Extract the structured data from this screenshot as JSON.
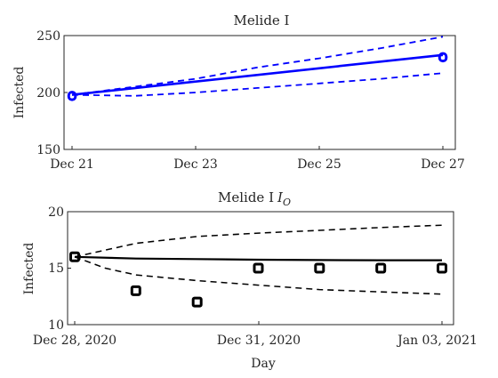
{
  "chart_data": [
    {
      "type": "line",
      "title": "Melide I",
      "ylabel": "Infected",
      "xlabel": "",
      "x_ticks": [
        "Dec 21",
        "Dec 23",
        "Dec 25",
        "Dec 27"
      ],
      "y_ticks": [
        "150",
        "200",
        "250"
      ],
      "ylim": [
        150,
        250
      ],
      "xlim_days": [
        0,
        6
      ],
      "color": "#0000ff",
      "observed": [
        {
          "day": 0,
          "value": 197
        },
        {
          "day": 6,
          "value": 231
        }
      ],
      "series": [
        {
          "role": "fit",
          "style": "solid",
          "points": [
            [
              0,
              198
            ],
            [
              6,
              233
            ]
          ]
        },
        {
          "role": "upper",
          "style": "dashed",
          "points": [
            [
              0,
              198
            ],
            [
              1,
              205
            ],
            [
              2,
              212
            ],
            [
              3,
              222
            ],
            [
              4,
              230
            ],
            [
              5,
              239
            ],
            [
              6,
              249
            ]
          ]
        },
        {
          "role": "lower",
          "style": "dashed",
          "points": [
            [
              0,
              198
            ],
            [
              1,
              197
            ],
            [
              2,
              200
            ],
            [
              3,
              204
            ],
            [
              4,
              208
            ],
            [
              5,
              212
            ],
            [
              6,
              217
            ]
          ]
        }
      ]
    },
    {
      "type": "line",
      "title": "Melide I",
      "title_subscript": "O",
      "ylabel": "Infected",
      "xlabel": "Day",
      "x_ticks": [
        "Dec 28, 2020",
        "Dec 31, 2020",
        "Jan 03, 2021"
      ],
      "y_ticks": [
        "10",
        "15",
        "20"
      ],
      "ylim": [
        10,
        20
      ],
      "xlim_days": [
        0,
        6
      ],
      "color": "#000000",
      "observed": [
        {
          "day": 0,
          "value": 16
        },
        {
          "day": 1,
          "value": 13
        },
        {
          "day": 2,
          "value": 12
        },
        {
          "day": 3,
          "value": 15
        },
        {
          "day": 4,
          "value": 15
        },
        {
          "day": 5,
          "value": 15
        },
        {
          "day": 6,
          "value": 15
        }
      ],
      "series": [
        {
          "role": "fit",
          "style": "solid",
          "points": [
            [
              0,
              16
            ],
            [
              1,
              15.85
            ],
            [
              2,
              15.8
            ],
            [
              3,
              15.75
            ],
            [
              4,
              15.72
            ],
            [
              5,
              15.7
            ],
            [
              6,
              15.7
            ]
          ]
        },
        {
          "role": "upper",
          "style": "dashed",
          "points": [
            [
              0,
              16
            ],
            [
              0.5,
              16.6
            ],
            [
              1,
              17.2
            ],
            [
              2,
              17.8
            ],
            [
              3,
              18.1
            ],
            [
              4,
              18.35
            ],
            [
              5,
              18.6
            ],
            [
              6,
              18.8
            ]
          ]
        },
        {
          "role": "lower",
          "style": "dashed",
          "points": [
            [
              0,
              16
            ],
            [
              0.5,
              15
            ],
            [
              1,
              14.4
            ],
            [
              2,
              13.9
            ],
            [
              3,
              13.5
            ],
            [
              4,
              13.1
            ],
            [
              5,
              12.9
            ],
            [
              6,
              12.7
            ]
          ]
        }
      ]
    }
  ]
}
